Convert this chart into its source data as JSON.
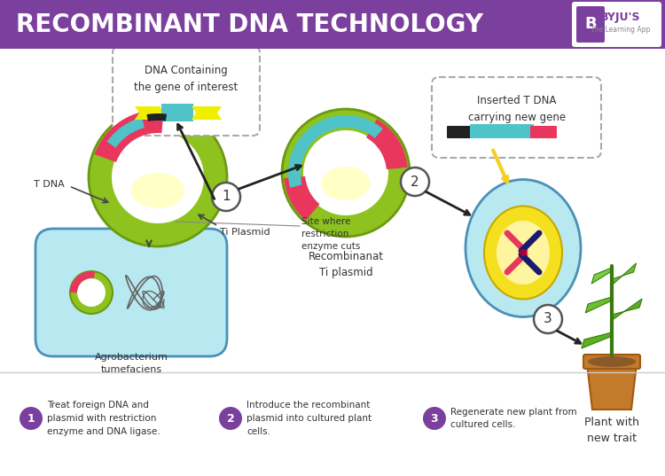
{
  "title": "RECOMBINANT DNA TECHNOLOGY",
  "title_bg": "#7B3F9E",
  "title_color": "#FFFFFF",
  "bg_color": "#FFFFFF",
  "footer_line_color": "#CCCCCC",
  "lime_green": "#8DC21F",
  "cyan_light": "#B8E8F0",
  "yellow_light": "#FFFFC0",
  "pink_red": "#E8365D",
  "cyan_med": "#4FC3C8",
  "yellow_med": "#F5D020",
  "purple_circle": "#7B3F9E",
  "dark_navy": "#1A1A6E",
  "step_labels": [
    "Treat foreign DNA and\nplasmid with restriction\nenzyme and DNA ligase.",
    "Introduce the recombinant\nplasmid into cultured plant\ncells.",
    "Regenerate new plant from\ncultured cells."
  ],
  "annotations": {
    "dna_box": "DNA Containing\nthe gene of interest",
    "recombinant": "Recombinanat\nTi plasmid",
    "t_dna": "T DNA",
    "ti_plasmid": "Ti Plasmid",
    "site": "Site where\nrestriction\nenzyme cuts",
    "agrobacterium": "Agrobacterium\ntumefaciens",
    "inserted": "Inserted T DNA\ncarrying new gene",
    "plant": "Plant with\nnew trait"
  }
}
